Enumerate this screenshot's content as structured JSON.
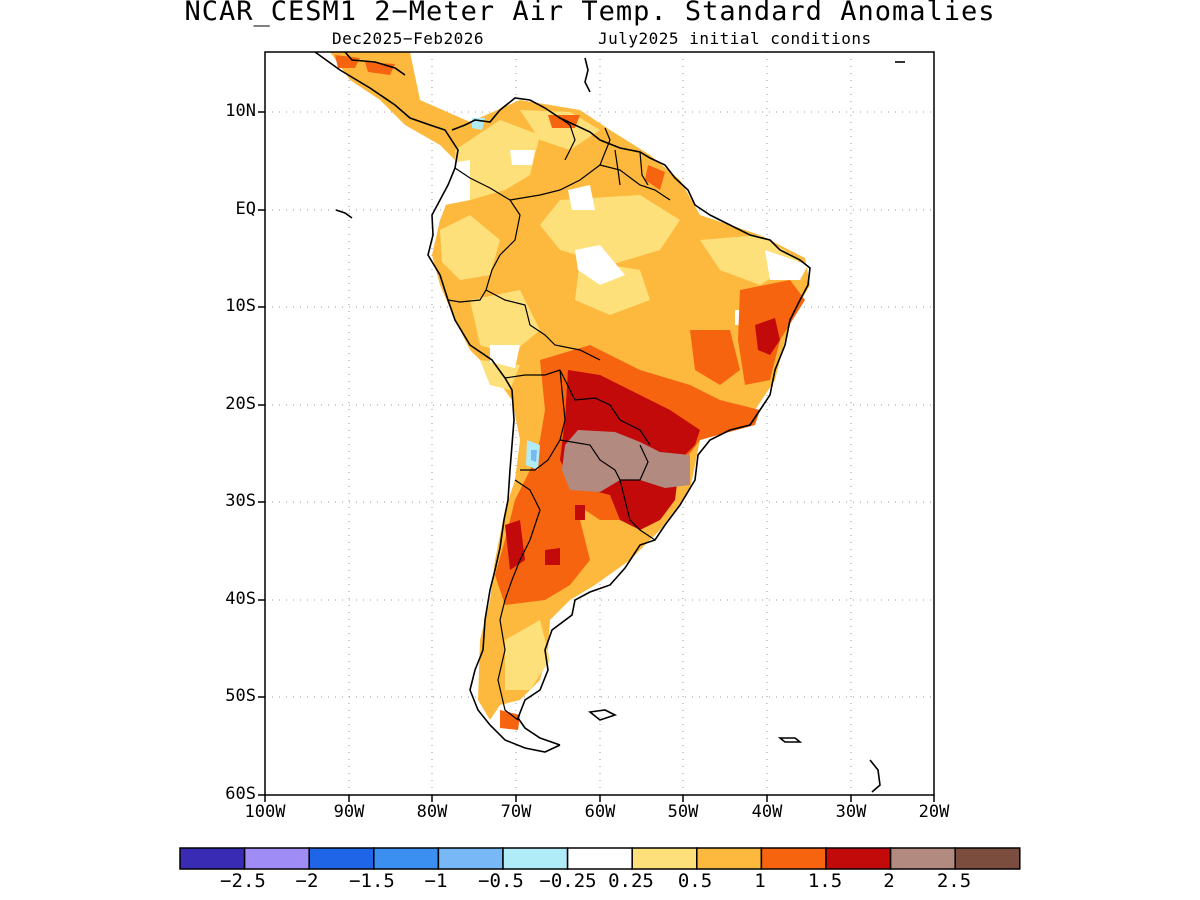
{
  "title": "NCAR_CESM1 2−Meter Air Temp. Standard Anomalies",
  "subtitle_left": "Dec2025−Feb2026",
  "subtitle_right": "July2025 initial conditions",
  "lat_labels": [
    "10N",
    "EQ",
    "10S",
    "20S",
    "30S",
    "40S",
    "50S",
    "60S"
  ],
  "lon_labels": [
    "100W",
    "90W",
    "80W",
    "70W",
    "60W",
    "50W",
    "40W",
    "30W",
    "20W"
  ],
  "colorbar": {
    "colors": [
      "#3a2bb5",
      "#9f8df5",
      "#1f65e8",
      "#3b8ff0",
      "#79b8f7",
      "#b0ecf8",
      "#ffffff",
      "#fde07a",
      "#fdb93e",
      "#f6640f",
      "#c20a0a",
      "#b38a80",
      "#7a4d3f"
    ],
    "labels": [
      "−2.5",
      "−2",
      "−1.5",
      "−1",
      "−0.5",
      "−0.25",
      "0.25",
      "0.5",
      "1",
      "1.5",
      "2",
      "2.5"
    ]
  }
}
